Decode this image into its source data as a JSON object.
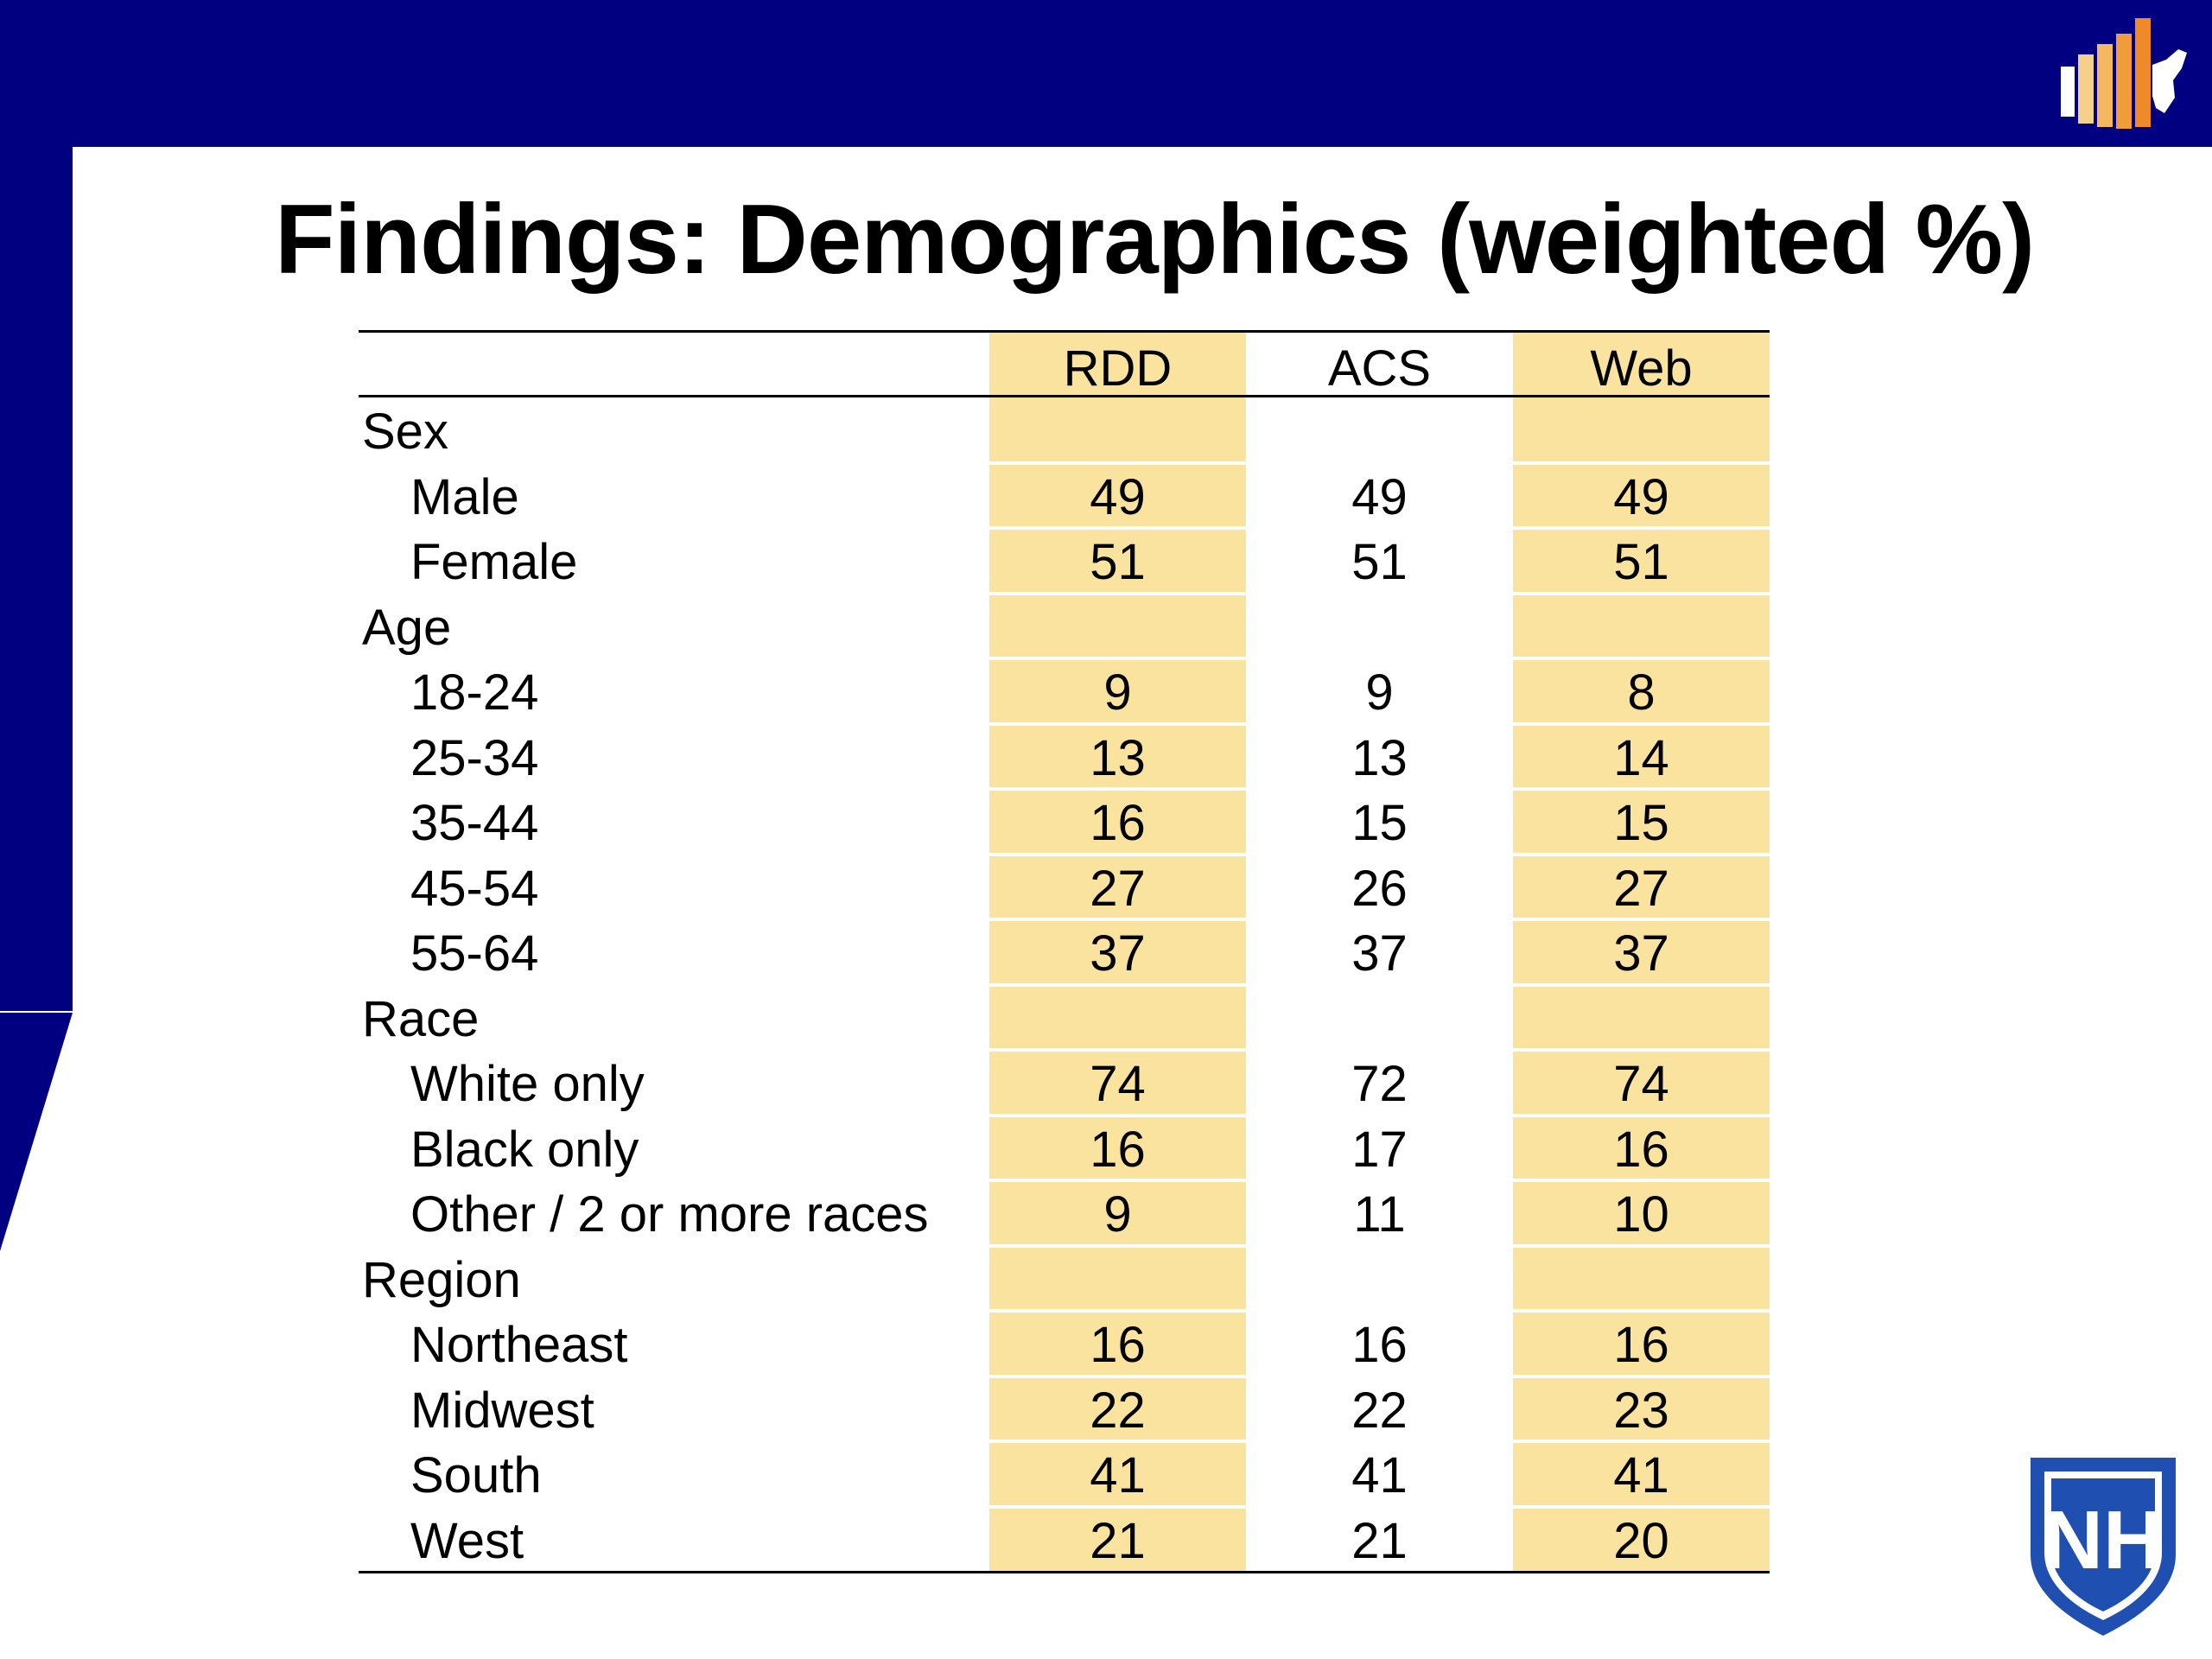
{
  "slide": {
    "title": "Findings: Demographics (weighted %)"
  },
  "colors": {
    "band": "#000080",
    "highlight": "#fae39e"
  },
  "logos": {
    "top_right": "bar-chart-map-logo-icon",
    "bottom_right": "unh-shield-logo-icon",
    "shield_text": "NH"
  },
  "table": {
    "headers": [
      "",
      "RDD",
      "ACS",
      "Web"
    ],
    "rows": [
      {
        "label": "Sex",
        "type": "category",
        "rdd": "",
        "acs": "",
        "web": ""
      },
      {
        "label": "Male",
        "type": "item",
        "rdd": "49",
        "acs": "49",
        "web": "49"
      },
      {
        "label": "Female",
        "type": "item",
        "rdd": "51",
        "acs": "51",
        "web": "51"
      },
      {
        "label": "Age",
        "type": "category",
        "rdd": "",
        "acs": "",
        "web": ""
      },
      {
        "label": "18-24",
        "type": "item",
        "rdd": "9",
        "acs": "9",
        "web": "8"
      },
      {
        "label": "25-34",
        "type": "item",
        "rdd": "13",
        "acs": "13",
        "web": "14"
      },
      {
        "label": "35-44",
        "type": "item",
        "rdd": "16",
        "acs": "15",
        "web": "15"
      },
      {
        "label": "45-54",
        "type": "item",
        "rdd": "27",
        "acs": "26",
        "web": "27"
      },
      {
        "label": "55-64",
        "type": "item",
        "rdd": "37",
        "acs": "37",
        "web": "37"
      },
      {
        "label": "Race",
        "type": "category",
        "rdd": "",
        "acs": "",
        "web": ""
      },
      {
        "label": "White only",
        "type": "item",
        "rdd": "74",
        "acs": "72",
        "web": "74"
      },
      {
        "label": "Black only",
        "type": "item",
        "rdd": "16",
        "acs": "17",
        "web": "16"
      },
      {
        "label": "Other / 2 or more races",
        "type": "item",
        "rdd": "9",
        "acs": "11",
        "web": "10"
      },
      {
        "label": "Region",
        "type": "category",
        "rdd": "",
        "acs": "",
        "web": ""
      },
      {
        "label": "Northeast",
        "type": "item",
        "rdd": "16",
        "acs": "16",
        "web": "16"
      },
      {
        "label": "Midwest",
        "type": "item",
        "rdd": "22",
        "acs": "22",
        "web": "23"
      },
      {
        "label": "South",
        "type": "item",
        "rdd": "41",
        "acs": "41",
        "web": "41"
      },
      {
        "label": "West",
        "type": "item",
        "rdd": "21",
        "acs": "21",
        "web": "20"
      }
    ]
  }
}
